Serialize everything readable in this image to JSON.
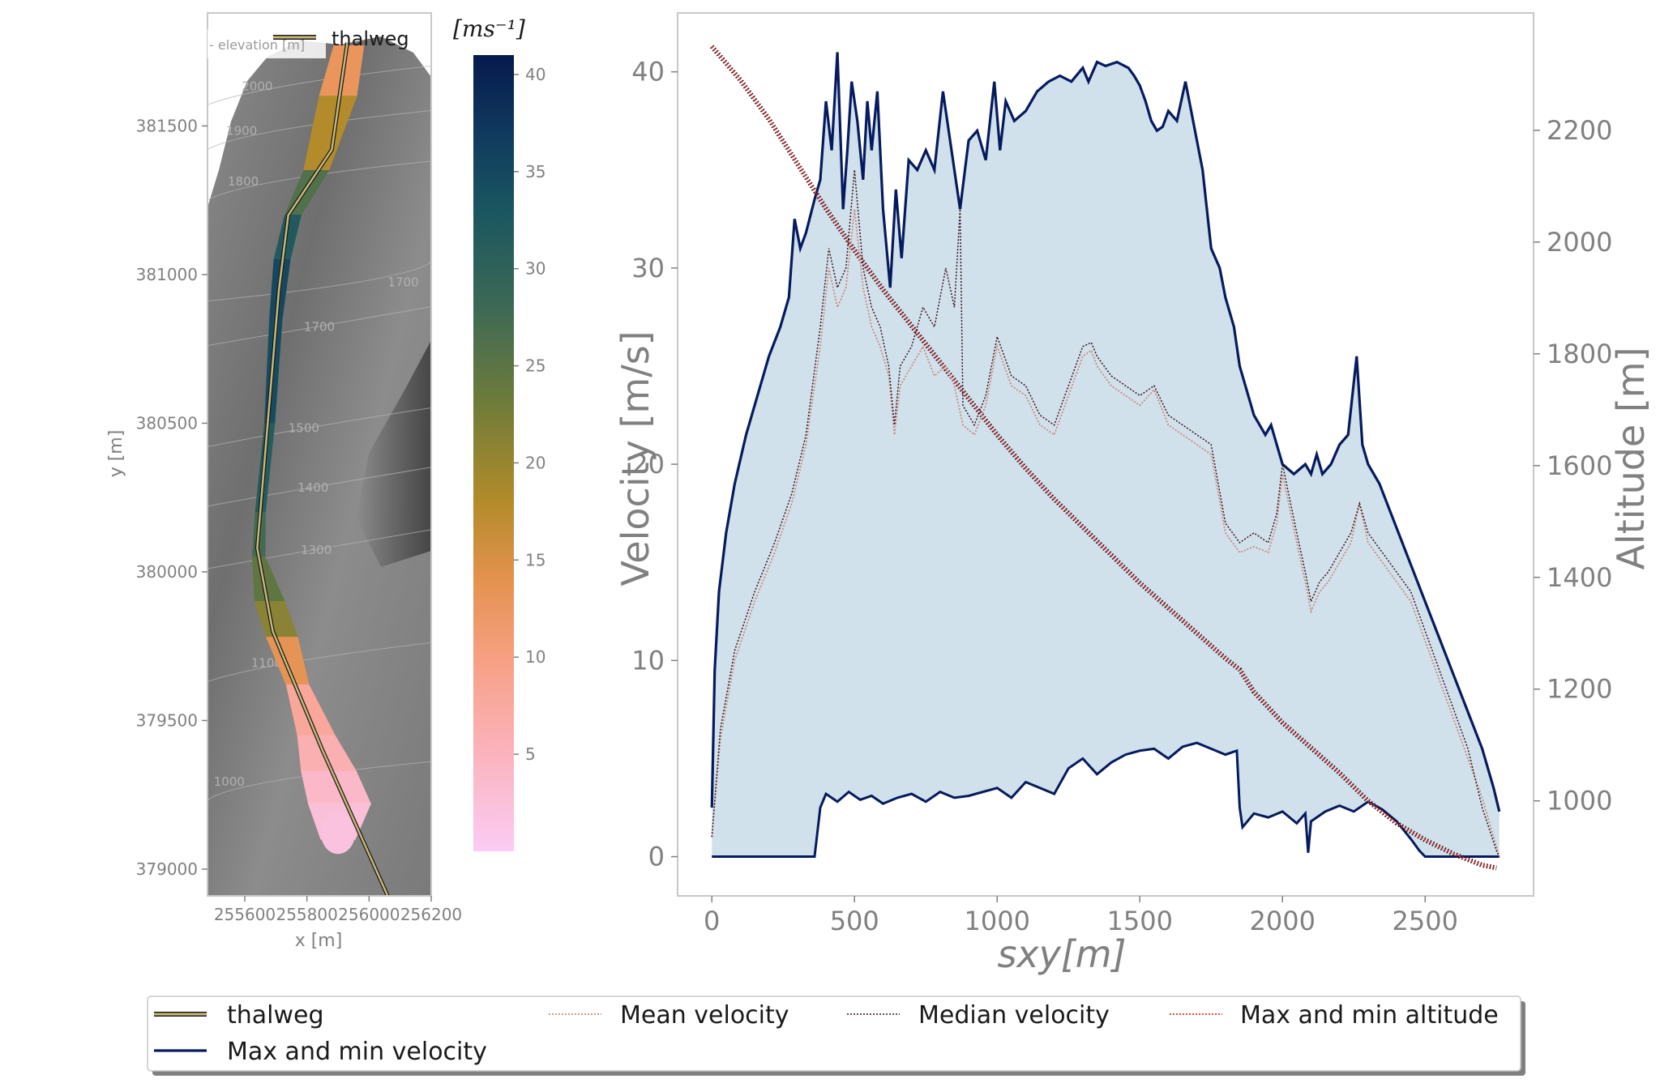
{
  "chart_data": [
    {
      "type": "heatmap",
      "title": "",
      "xlabel": "x [m]",
      "ylabel": "y [m]",
      "xlim": [
        255480,
        256200
      ],
      "ylim": [
        378910,
        381880
      ],
      "xticks": [
        255600,
        255800,
        256000,
        256200
      ],
      "xtick_labels": [
        "255600",
        "255800",
        "256000",
        "256200"
      ],
      "yticks": [
        379000,
        379500,
        380000,
        380500,
        381000,
        381500
      ],
      "ytick_labels": [
        "379000",
        "379500",
        "380000",
        "380500",
        "381000",
        "381500"
      ],
      "inner_legend": {
        "thalweg_label": "thalweg",
        "elevation_label": "- elevation [m]"
      },
      "contour_labels": [
        {
          "text": "2000",
          "x": 255640,
          "y": 381620
        },
        {
          "text": "1900",
          "x": 255590,
          "y": 381470
        },
        {
          "text": "1800",
          "x": 255595,
          "y": 381300
        },
        {
          "text": "1700",
          "x": 255840,
          "y": 380810
        },
        {
          "text": "1500",
          "x": 255790,
          "y": 380470
        },
        {
          "text": "1400",
          "x": 255820,
          "y": 380270
        },
        {
          "text": "1300",
          "x": 255830,
          "y": 380060
        },
        {
          "text": "1100",
          "x": 255670,
          "y": 379680
        },
        {
          "text": "1000",
          "x": 255550,
          "y": 379280
        },
        {
          "text": "1700",
          "x": 256110,
          "y": 380960
        }
      ],
      "thalweg": {
        "x": [
          255930,
          255880,
          255740,
          255710,
          255640,
          255690,
          255850,
          256060
        ],
        "y": [
          381780,
          381420,
          381200,
          380950,
          380080,
          379800,
          379400,
          378910
        ]
      },
      "flow_centerline": {
        "x": [
          255935,
          255900,
          255830,
          255755,
          255720,
          255700,
          255680,
          255650,
          255645,
          255680,
          255720,
          255770,
          255830,
          255870,
          255905,
          255900
        ],
        "y": [
          381770,
          381600,
          381350,
          381200,
          381050,
          380850,
          380500,
          380200,
          380050,
          379900,
          379780,
          379620,
          379450,
          379330,
          379220,
          379100
        ],
        "half_width": [
          48,
          60,
          40,
          26,
          26,
          20,
          16,
          16,
          20,
          48,
          50,
          36,
          60,
          88,
          100,
          55
        ],
        "velocity": [
          12,
          14,
          22,
          30,
          34,
          36,
          33,
          30,
          25,
          24,
          18,
          9,
          7,
          5,
          3,
          2
        ]
      },
      "colorbar": {
        "label": "[ms⁻¹]",
        "min": 0,
        "max": 41,
        "ticks": [
          5,
          10,
          15,
          20,
          25,
          30,
          35,
          40
        ],
        "tick_labels": [
          "5",
          "10",
          "15",
          "20",
          "25",
          "30",
          "35",
          "40"
        ],
        "stops": [
          {
            "v": 0,
            "color": "#fbccf5"
          },
          {
            "v": 5,
            "color": "#fbb3bd"
          },
          {
            "v": 10,
            "color": "#f79f82"
          },
          {
            "v": 14,
            "color": "#e4924e"
          },
          {
            "v": 18,
            "color": "#b38b2a"
          },
          {
            "v": 23,
            "color": "#6f7c3a"
          },
          {
            "v": 28,
            "color": "#3d6955"
          },
          {
            "v": 33,
            "color": "#1a5660"
          },
          {
            "v": 37,
            "color": "#10395e"
          },
          {
            "v": 41,
            "color": "#061a4d"
          }
        ]
      }
    },
    {
      "type": "line",
      "title": "",
      "xlabel": "sxy[m]",
      "ylabel": "Velocity [m/s]",
      "y2label": "Altitude [m]",
      "xlim": [
        -120,
        2880
      ],
      "ylim": [
        -2,
        43
      ],
      "y2lim": [
        830,
        2410
      ],
      "xticks": [
        0,
        500,
        1000,
        1500,
        2000,
        2500
      ],
      "xtick_labels": [
        "0",
        "500",
        "1000",
        "1500",
        "2000",
        "2500"
      ],
      "yticks": [
        0,
        10,
        20,
        30,
        40
      ],
      "ytick_labels": [
        "0",
        "10",
        "20",
        "30",
        "40"
      ],
      "y2ticks": [
        1000,
        1200,
        1400,
        1600,
        1800,
        2000,
        2200
      ],
      "y2tick_labels": [
        "1000",
        "1200",
        "1400",
        "1600",
        "1800",
        "2000",
        "2200"
      ],
      "grid": false,
      "colors": {
        "fill": "#d1e1ec",
        "max_min_velocity": "#061a5e",
        "mean_velocity": "#c9897a",
        "median_velocity": "#3a1018",
        "altitude": "#e0302a",
        "thalweg": "#c8b878"
      },
      "series": [
        {
          "name": "Max and min velocity",
          "style": "solid",
          "x": [
            0,
            10,
            25,
            50,
            80,
            120,
            160,
            200,
            240,
            270,
            290,
            310,
            330,
            360,
            380,
            400,
            420,
            440,
            460,
            475,
            490,
            510,
            530,
            545,
            560,
            580,
            600,
            625,
            645,
            665,
            690,
            720,
            750,
            780,
            810,
            840,
            870,
            900,
            930,
            960,
            990,
            1010,
            1030,
            1060,
            1100,
            1140,
            1180,
            1220,
            1260,
            1300,
            1320,
            1350,
            1380,
            1420,
            1460,
            1480,
            1500,
            1520,
            1540,
            1560,
            1580,
            1600,
            1630,
            1660,
            1680,
            1700,
            1720,
            1750,
            1780,
            1800,
            1830,
            1850,
            1880,
            1900,
            1920,
            1940,
            1960,
            1980,
            2000,
            2040,
            2080,
            2100,
            2120,
            2140,
            2170,
            2200,
            2230,
            2260,
            2280,
            2300,
            2340,
            2380,
            2420,
            2460,
            2500,
            2540,
            2580,
            2620,
            2660,
            2700,
            2740,
            2760
          ],
          "values": [
            2.5,
            9.5,
            13.5,
            16.5,
            19,
            21.5,
            23.5,
            25.5,
            27,
            28.5,
            32.5,
            31,
            31.8,
            33.5,
            34.5,
            38.5,
            36,
            41,
            33,
            36,
            39.5,
            37.5,
            34.5,
            38.5,
            36,
            39,
            33,
            29,
            34,
            30.5,
            35.5,
            35,
            36,
            35,
            39,
            36,
            33,
            36.5,
            37,
            35.5,
            39.5,
            36,
            38.5,
            37.5,
            38,
            39,
            39.5,
            39.8,
            39.5,
            40.2,
            39.5,
            40.5,
            40.3,
            40.5,
            40.2,
            39.8,
            39.3,
            38.5,
            37.5,
            37,
            37.2,
            38,
            37.5,
            39.5,
            38,
            36.5,
            35,
            31,
            30,
            28.5,
            27,
            25,
            23.5,
            22.5,
            22,
            21.5,
            22,
            21,
            20,
            19.5,
            20,
            19.5,
            20.5,
            19.5,
            20,
            21,
            21.5,
            25.5,
            21,
            20,
            19,
            17.5,
            16,
            14.5,
            13,
            11.5,
            10,
            8.5,
            7,
            5.5,
            3.5,
            2.3
          ]
        },
        {
          "name": "",
          "style": "solid",
          "x": [
            0,
            360,
            380,
            400,
            440,
            480,
            520,
            560,
            600,
            650,
            700,
            750,
            800,
            850,
            900,
            950,
            1000,
            1050,
            1100,
            1150,
            1200,
            1250,
            1300,
            1350,
            1400,
            1450,
            1500,
            1550,
            1600,
            1650,
            1700,
            1750,
            1800,
            1840,
            1850,
            1860,
            1900,
            1950,
            2000,
            2050,
            2080,
            2090,
            2100,
            2150,
            2200,
            2250,
            2300,
            2350,
            2400,
            2450,
            2480,
            2500,
            2550,
            2600,
            2650,
            2700,
            2760
          ],
          "values": [
            0,
            0,
            2.5,
            3.2,
            2.8,
            3.3,
            2.9,
            3.1,
            2.7,
            3.0,
            3.2,
            2.8,
            3.3,
            3.0,
            3.1,
            3.3,
            3.5,
            3.0,
            3.8,
            3.5,
            3.2,
            4.5,
            5.0,
            4.2,
            4.8,
            5.2,
            5.4,
            5.5,
            5.0,
            5.6,
            5.8,
            5.5,
            5.2,
            5.4,
            2.5,
            1.5,
            2.2,
            2.0,
            2.3,
            1.7,
            2.2,
            0.2,
            1.8,
            2.3,
            2.6,
            2.3,
            2.8,
            2.4,
            1.8,
            0.9,
            0.3,
            0,
            0,
            0,
            0,
            0,
            0
          ]
        },
        {
          "name": "Mean velocity",
          "style": "dotted",
          "x": [
            0,
            30,
            80,
            150,
            220,
            280,
            330,
            380,
            410,
            440,
            470,
            500,
            530,
            560,
            590,
            620,
            640,
            660,
            700,
            740,
            780,
            820,
            850,
            880,
            920,
            960,
            1000,
            1050,
            1100,
            1150,
            1200,
            1250,
            1300,
            1330,
            1350,
            1400,
            1450,
            1500,
            1550,
            1600,
            1650,
            1700,
            1750,
            1800,
            1850,
            1900,
            1950,
            1980,
            2000,
            2050,
            2080,
            2100,
            2130,
            2160,
            2200,
            2240,
            2270,
            2300,
            2350,
            2400,
            2450,
            2500,
            2550,
            2600,
            2650,
            2700,
            2750,
            2760
          ],
          "values": [
            1,
            6,
            10,
            13,
            15.5,
            18,
            21,
            26,
            30,
            28,
            29,
            33,
            29,
            27,
            26,
            24.5,
            21.5,
            24,
            25,
            26,
            24.5,
            25,
            24,
            22,
            21.5,
            23,
            26,
            24,
            23.5,
            22,
            21.5,
            23.5,
            25.5,
            25.8,
            25,
            24,
            23.5,
            23,
            23.8,
            22,
            21.5,
            21,
            20.5,
            16.5,
            15.5,
            15.8,
            15.5,
            17,
            19.5,
            16,
            14,
            12.5,
            13.5,
            14,
            15,
            16,
            18,
            16,
            15,
            14,
            13,
            11,
            9,
            7,
            5,
            3,
            0.5,
            0
          ]
        },
        {
          "name": "Median velocity",
          "style": "dotted",
          "x": [
            0,
            30,
            80,
            150,
            220,
            280,
            330,
            380,
            410,
            440,
            470,
            500,
            530,
            560,
            590,
            620,
            640,
            660,
            700,
            740,
            780,
            820,
            850,
            870,
            880,
            920,
            960,
            1000,
            1050,
            1100,
            1150,
            1200,
            1250,
            1300,
            1330,
            1350,
            1400,
            1450,
            1500,
            1550,
            1600,
            1650,
            1700,
            1750,
            1800,
            1850,
            1900,
            1950,
            1980,
            2000,
            2050,
            2080,
            2100,
            2130,
            2160,
            2200,
            2240,
            2270,
            2300,
            2350,
            2400,
            2450,
            2500,
            2550,
            2600,
            2650,
            2700,
            2750,
            2760
          ],
          "values": [
            1,
            6.5,
            10.5,
            13.5,
            16,
            18.5,
            21.5,
            27,
            31,
            29,
            30,
            35,
            30,
            28,
            27,
            25,
            22,
            25,
            26,
            28,
            27,
            30,
            28,
            33,
            23,
            22,
            23.5,
            26.5,
            24.5,
            24,
            22.5,
            22,
            24,
            26,
            26.2,
            25.5,
            24.5,
            24,
            23.5,
            24,
            22.5,
            22,
            21.5,
            21,
            17,
            16,
            16.5,
            16,
            17.5,
            20,
            16.5,
            14.5,
            13,
            14,
            14.5,
            15.5,
            16.5,
            18,
            16.5,
            15.5,
            14.5,
            13.5,
            11.5,
            9.5,
            7.5,
            5.5,
            2.5,
            0.3,
            0
          ]
        },
        {
          "name": "Max and min altitude",
          "style": "dotted",
          "axis": "y2",
          "x": [
            0,
            100,
            200,
            300,
            400,
            500,
            600,
            700,
            800,
            900,
            1000,
            1100,
            1200,
            1300,
            1400,
            1500,
            1600,
            1700,
            1800,
            1850,
            1900,
            2000,
            2100,
            2200,
            2300,
            2400,
            2500,
            2600,
            2700,
            2750
          ],
          "values": [
            2350,
            2290,
            2220,
            2140,
            2060,
            1985,
            1915,
            1850,
            1785,
            1720,
            1655,
            1595,
            1540,
            1490,
            1440,
            1390,
            1345,
            1300,
            1255,
            1235,
            1195,
            1140,
            1095,
            1050,
            1000,
            960,
            930,
            905,
            885,
            880
          ]
        }
      ],
      "legend": {
        "position": "bottom",
        "entries": [
          "thalweg",
          "Max and min velocity",
          "Mean velocity",
          "Median velocity",
          "Max and min altitude"
        ]
      }
    }
  ]
}
